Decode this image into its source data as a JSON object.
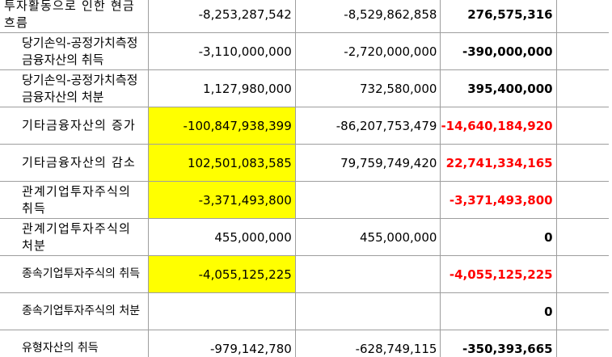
{
  "rows": [
    {
      "label": "투자활동으로 인한 현금흐름",
      "v1": "-8,253,287,542",
      "v2": "-8,529,862,858",
      "diff": "276,575,316",
      "diff_neg": false,
      "highlight": false
    },
    {
      "label": "당기손익-공정가치측정금융자산의 취득",
      "v1": "-3,110,000,000",
      "v2": "-2,720,000,000",
      "diff": "-390,000,000",
      "diff_neg": false,
      "highlight": false
    },
    {
      "label": "당기손익-공정가치측정금융자산의 처분",
      "v1": "1,127,980,000",
      "v2": "732,580,000",
      "diff": "395,400,000",
      "diff_neg": false,
      "highlight": false
    },
    {
      "label": "기타금융자산의 증가",
      "v1": "-100,847,938,399",
      "v2": "-86,207,753,479",
      "diff": "-14,640,184,920",
      "diff_neg": true,
      "highlight": true
    },
    {
      "label": "기타금융자산의 감소",
      "v1": "102,501,083,585",
      "v2": "79,759,749,420",
      "diff": "22,741,334,165",
      "diff_neg": true,
      "highlight": true
    },
    {
      "label": "관계기업투자주식의 취득",
      "v1": "-3,371,493,800",
      "v2": "",
      "diff": "-3,371,493,800",
      "diff_neg": true,
      "highlight": true
    },
    {
      "label": "관계기업투자주식의 처분",
      "v1": "455,000,000",
      "v2": "455,000,000",
      "diff": "0",
      "diff_neg": false,
      "highlight": false
    },
    {
      "label": "종속기업투자주식의 취득",
      "v1": "-4,055,125,225",
      "v2": "",
      "diff": "-4,055,125,225",
      "diff_neg": true,
      "highlight": true
    },
    {
      "label": "종속기업투자주식의 처분",
      "v1": "",
      "v2": "",
      "diff": "0",
      "diff_neg": false,
      "highlight": false
    },
    {
      "label": "유형자산의 취득",
      "v1": "-979,142,780",
      "v2": "-628,749,115",
      "diff": "-350,393,665",
      "diff_neg": false,
      "highlight": false
    }
  ],
  "colors": {
    "highlight": "#ffff00",
    "negative": "#ff0000",
    "grid": "#9e9e9e"
  }
}
